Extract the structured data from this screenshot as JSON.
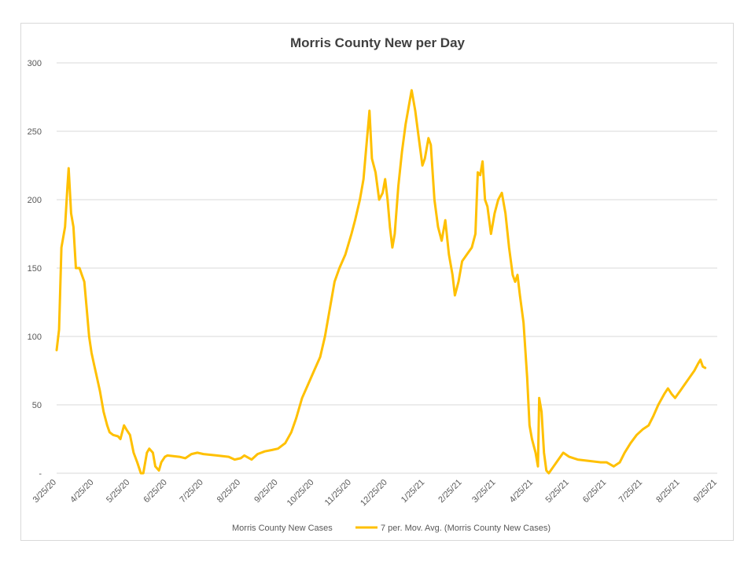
{
  "chart_data": {
    "type": "line",
    "title": "Morris County New per Day",
    "xlabel": "",
    "ylabel": "",
    "x_start": "3/25/20",
    "x_end": "9/15/21",
    "x_tick_labels": [
      "3/25/20",
      "4/25/20",
      "5/25/20",
      "6/25/20",
      "7/25/20",
      "8/25/20",
      "9/25/20",
      "10/25/20",
      "11/25/20",
      "12/25/20",
      "1/25/21",
      "2/25/21",
      "3/25/21",
      "4/25/21",
      "5/25/21",
      "6/25/21",
      "7/25/21",
      "8/25/21",
      "9/25/21"
    ],
    "y_tick_labels": [
      "-",
      "50",
      "100",
      "150",
      "200",
      "250",
      "300"
    ],
    "ylim": [
      0,
      300
    ],
    "grid": "horizontal",
    "legend_position": "bottom",
    "colors": {
      "moving_avg": "#ffc000",
      "grid": "#d9d9d9",
      "text": "#595959"
    },
    "series": [
      {
        "name": "Morris County New Cases",
        "values": []
      },
      {
        "name": "7 per. Mov. Avg. (Morris County New Cases)",
        "points": [
          [
            "3/25/20",
            90
          ],
          [
            "3/27/20",
            105
          ],
          [
            "3/29/20",
            165
          ],
          [
            "4/1/20",
            180
          ],
          [
            "4/3/20",
            210
          ],
          [
            "4/4/20",
            223
          ],
          [
            "4/6/20",
            190
          ],
          [
            "4/8/20",
            180
          ],
          [
            "4/10/20",
            150
          ],
          [
            "4/13/20",
            150
          ],
          [
            "4/15/20",
            145
          ],
          [
            "4/17/20",
            140
          ],
          [
            "4/19/20",
            120
          ],
          [
            "4/21/20",
            100
          ],
          [
            "4/23/20",
            88
          ],
          [
            "4/25/20",
            80
          ],
          [
            "4/27/20",
            72
          ],
          [
            "4/30/20",
            60
          ],
          [
            "5/3/20",
            45
          ],
          [
            "5/6/20",
            35
          ],
          [
            "5/8/20",
            30
          ],
          [
            "5/11/20",
            28
          ],
          [
            "5/15/20",
            27
          ],
          [
            "5/17/20",
            25
          ],
          [
            "5/20/20",
            35
          ],
          [
            "5/22/20",
            32
          ],
          [
            "5/25/20",
            28
          ],
          [
            "5/28/20",
            15
          ],
          [
            "5/31/20",
            8
          ],
          [
            "6/3/20",
            0
          ],
          [
            "6/5/20",
            0
          ],
          [
            "6/8/20",
            15
          ],
          [
            "6/10/20",
            18
          ],
          [
            "6/13/20",
            15
          ],
          [
            "6/15/20",
            5
          ],
          [
            "6/18/20",
            2
          ],
          [
            "6/20/20",
            8
          ],
          [
            "6/23/20",
            12
          ],
          [
            "6/25/20",
            13
          ],
          [
            "7/5/20",
            12
          ],
          [
            "7/10/20",
            11
          ],
          [
            "7/15/20",
            14
          ],
          [
            "7/20/20",
            15
          ],
          [
            "7/25/20",
            14
          ],
          [
            "8/5/20",
            13
          ],
          [
            "8/15/20",
            12
          ],
          [
            "8/20/20",
            10
          ],
          [
            "8/25/20",
            11
          ],
          [
            "8/28/20",
            13
          ],
          [
            "9/3/20",
            10
          ],
          [
            "9/8/20",
            14
          ],
          [
            "9/14/20",
            16
          ],
          [
            "9/20/20",
            17
          ],
          [
            "9/25/20",
            18
          ],
          [
            "10/1/20",
            22
          ],
          [
            "10/6/20",
            30
          ],
          [
            "10/10/20",
            40
          ],
          [
            "10/15/20",
            55
          ],
          [
            "10/20/20",
            65
          ],
          [
            "10/25/20",
            75
          ],
          [
            "10/30/20",
            85
          ],
          [
            "11/3/20",
            100
          ],
          [
            "11/7/20",
            120
          ],
          [
            "11/11/20",
            140
          ],
          [
            "11/15/20",
            150
          ],
          [
            "11/20/20",
            160
          ],
          [
            "11/25/20",
            175
          ],
          [
            "11/28/20",
            185
          ],
          [
            "12/2/20",
            200
          ],
          [
            "12/5/20",
            215
          ],
          [
            "12/7/20",
            235
          ],
          [
            "12/9/20",
            255
          ],
          [
            "12/10/20",
            265
          ],
          [
            "12/12/20",
            230
          ],
          [
            "12/15/20",
            220
          ],
          [
            "12/18/20",
            200
          ],
          [
            "12/21/20",
            205
          ],
          [
            "12/23/20",
            215
          ],
          [
            "12/25/20",
            200
          ],
          [
            "12/27/20",
            180
          ],
          [
            "12/29/20",
            165
          ],
          [
            "12/31/20",
            175
          ],
          [
            "1/3/21",
            210
          ],
          [
            "1/6/21",
            235
          ],
          [
            "1/9/21",
            255
          ],
          [
            "1/12/21",
            270
          ],
          [
            "1/14/21",
            280
          ],
          [
            "1/17/21",
            265
          ],
          [
            "1/20/21",
            245
          ],
          [
            "1/23/21",
            225
          ],
          [
            "1/25/21",
            230
          ],
          [
            "1/28/21",
            245
          ],
          [
            "1/30/21",
            240
          ],
          [
            "2/2/21",
            200
          ],
          [
            "2/5/21",
            180
          ],
          [
            "2/8/21",
            170
          ],
          [
            "2/11/21",
            185
          ],
          [
            "2/14/21",
            160
          ],
          [
            "2/17/21",
            145
          ],
          [
            "2/19/21",
            130
          ],
          [
            "2/22/21",
            140
          ],
          [
            "2/25/21",
            155
          ],
          [
            "3/1/21",
            160
          ],
          [
            "3/5/21",
            165
          ],
          [
            "3/8/21",
            175
          ],
          [
            "3/10/21",
            220
          ],
          [
            "3/12/21",
            218
          ],
          [
            "3/14/21",
            228
          ],
          [
            "3/16/21",
            200
          ],
          [
            "3/18/21",
            195
          ],
          [
            "3/21/21",
            175
          ],
          [
            "3/24/21",
            190
          ],
          [
            "3/27/21",
            200
          ],
          [
            "3/30/21",
            205
          ],
          [
            "4/2/21",
            190
          ],
          [
            "4/5/21",
            165
          ],
          [
            "4/8/21",
            145
          ],
          [
            "4/10/21",
            140
          ],
          [
            "4/12/21",
            145
          ],
          [
            "4/14/21",
            130
          ],
          [
            "4/17/21",
            110
          ],
          [
            "4/20/21",
            70
          ],
          [
            "4/22/21",
            35
          ],
          [
            "4/24/21",
            25
          ],
          [
            "4/27/21",
            15
          ],
          [
            "4/29/21",
            5
          ],
          [
            "4/30/21",
            55
          ],
          [
            "5/2/21",
            45
          ],
          [
            "5/4/21",
            15
          ],
          [
            "5/6/21",
            2
          ],
          [
            "5/8/21",
            0
          ],
          [
            "5/12/21",
            5
          ],
          [
            "5/16/21",
            10
          ],
          [
            "5/20/21",
            15
          ],
          [
            "5/25/21",
            12
          ],
          [
            "6/1/21",
            10
          ],
          [
            "6/10/21",
            9
          ],
          [
            "6/20/21",
            8
          ],
          [
            "6/25/21",
            8
          ],
          [
            "7/1/21",
            5
          ],
          [
            "7/6/21",
            8
          ],
          [
            "7/10/21",
            15
          ],
          [
            "7/15/21",
            22
          ],
          [
            "7/20/21",
            28
          ],
          [
            "7/25/21",
            32
          ],
          [
            "7/30/21",
            35
          ],
          [
            "8/3/21",
            42
          ],
          [
            "8/7/21",
            50
          ],
          [
            "8/12/21",
            58
          ],
          [
            "8/15/21",
            62
          ],
          [
            "8/18/21",
            58
          ],
          [
            "8/21/21",
            55
          ],
          [
            "8/25/21",
            60
          ],
          [
            "8/29/21",
            65
          ],
          [
            "9/2/21",
            70
          ],
          [
            "9/6/21",
            75
          ],
          [
            "9/9/21",
            80
          ],
          [
            "9/11/21",
            83
          ],
          [
            "9/13/21",
            78
          ],
          [
            "9/15/21",
            77
          ]
        ]
      }
    ]
  }
}
